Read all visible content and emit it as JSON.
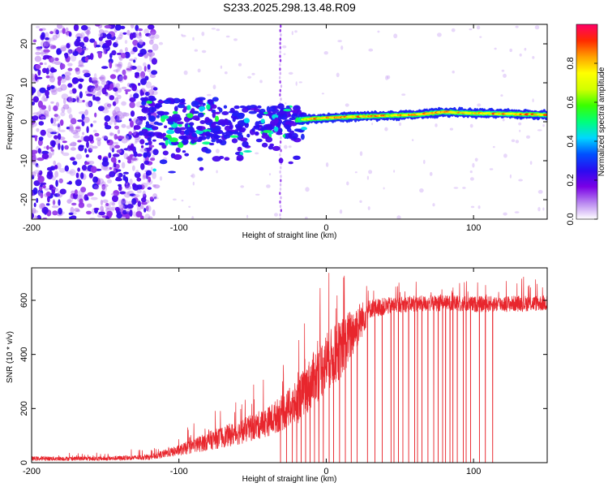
{
  "title": "S233.2025.298.13.48.R09",
  "chart_data": [
    {
      "type": "heatmap",
      "title": "S233.2025.298.13.48.R09",
      "xlabel": "Height of straight line (km)",
      "ylabel": "Frequency (Hz)",
      "xlim": [
        -200,
        150
      ],
      "ylim": [
        -25,
        25
      ],
      "xticks": [
        -200,
        -100,
        0,
        100
      ],
      "yticks": [
        -20,
        -10,
        0,
        10,
        20
      ],
      "colorbar": {
        "label": "Normalized spectral amplitude",
        "range": [
          0,
          1
        ],
        "ticks": [
          0.0,
          0.2,
          0.4,
          0.6,
          0.8
        ],
        "tick_labels": [
          "0.0",
          "0.2",
          "0.4",
          "0.6",
          "0.8"
        ],
        "colors": [
          "#ffffff",
          "#b987f0",
          "#7a00e6",
          "#2a0cf0",
          "#0050ff",
          "#00d7ff",
          "#00ff7a",
          "#39ff00",
          "#d2ff00",
          "#ffff00",
          "#ffa000",
          "#ff2a00",
          "#ff0066"
        ]
      },
      "regions": [
        {
          "x_from": -200,
          "x_to": -120,
          "f_from": -25,
          "f_to": 25,
          "amplitude": 0.15,
          "pattern": "scattered noise"
        },
        {
          "x_from": -120,
          "x_to": -20,
          "f_from": -8,
          "f_to": 5,
          "amplitude": 0.3,
          "pattern": "blobs near 0 Hz"
        },
        {
          "x_from": -20,
          "x_to": 150,
          "f_from": 0,
          "f_to": 3,
          "amplitude": 0.9,
          "pattern": "narrow band rising from ~0.5 Hz to ~2 Hz"
        }
      ],
      "ridge": {
        "x": [
          -20,
          0,
          20,
          60,
          80,
          100,
          150
        ],
        "f": [
          0.5,
          1.0,
          1.3,
          1.8,
          2.5,
          2.2,
          1.8
        ]
      },
      "vertical_streak_x": -31
    },
    {
      "type": "line",
      "xlabel": "Height of straight line (km)",
      "ylabel": "SNR (10 * v/v)",
      "xlim": [
        -200,
        150
      ],
      "ylim": [
        0,
        720
      ],
      "xticks": [
        -200,
        -100,
        0,
        100
      ],
      "yticks": [
        0,
        200,
        400,
        600
      ],
      "color": "#e8262d",
      "envelope": {
        "x": [
          -200,
          -150,
          -120,
          -100,
          -80,
          -60,
          -40,
          -20,
          -10,
          0,
          10,
          20,
          30,
          50,
          80,
          100,
          150
        ],
        "mean": [
          15,
          15,
          20,
          45,
          80,
          110,
          150,
          220,
          300,
          370,
          420,
          500,
          570,
          585,
          590,
          585,
          590
        ],
        "noise": [
          8,
          8,
          10,
          20,
          35,
          45,
          55,
          80,
          100,
          110,
          110,
          90,
          35,
          30,
          30,
          30,
          30
        ]
      },
      "dropouts_x": [
        -31,
        -27,
        -23,
        -20,
        -17,
        -14,
        -11,
        -8,
        -5,
        -2,
        2,
        5,
        9,
        13,
        17,
        21,
        28,
        33,
        38,
        44,
        46,
        49,
        52,
        56,
        60,
        62,
        65,
        69,
        73,
        76,
        79,
        81,
        84,
        86,
        89,
        93,
        95,
        98,
        104,
        108,
        113
      ]
    }
  ]
}
